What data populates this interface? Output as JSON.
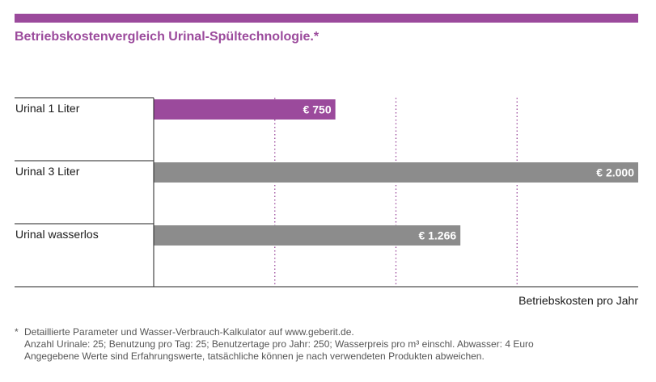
{
  "colors": {
    "accent": "#9b4a9c",
    "bar_gray": "#8c8c8c",
    "axis": "#222222",
    "grid": "#9b4a9c"
  },
  "chart_data": {
    "type": "bar",
    "orientation": "horizontal",
    "title": "Betriebskostenvergleich Urinal-Spültechnologie.*",
    "categories": [
      "Urinal 1 Liter",
      "Urinal 3 Liter",
      "Urinal wasserlos"
    ],
    "values": [
      750,
      2000,
      1266
    ],
    "value_labels": [
      "€ 750",
      "€ 2.000",
      "€ 1.266"
    ],
    "bar_colors": [
      "#9b4a9c",
      "#8c8c8c",
      "#8c8c8c"
    ],
    "xlim": [
      0,
      2000
    ],
    "gridlines": [
      500,
      1000,
      1500
    ],
    "xlabel": "Betriebskosten pro Jahr",
    "ylabel": "",
    "grid": "dotted vertical"
  },
  "footnote": {
    "mark": "*",
    "lines": [
      "Detaillierte Parameter und Wasser-Verbrauch-Kalkulator auf www.geberit.de.",
      "Anzahl Urinale: 25; Benutzung pro Tag: 25; Benutzertage pro Jahr: 250; Wasserpreis pro m³ einschl. Abwasser: 4 Euro",
      "Angegebene Werte sind Erfahrungswerte, tatsächliche können je nach verwendeten Produkten abweichen."
    ]
  }
}
